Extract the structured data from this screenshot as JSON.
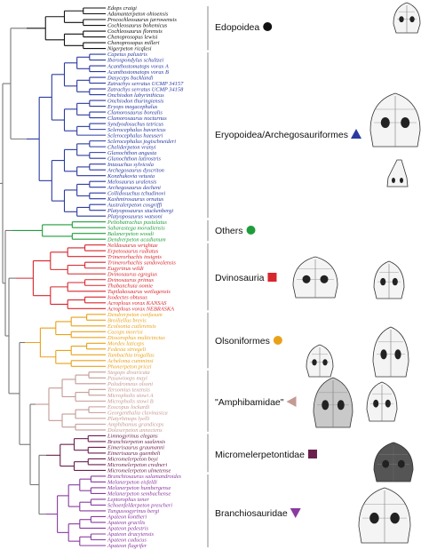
{
  "colors": {
    "edopoidea": "#111111",
    "eryopoidea": "#2b3aa0",
    "others": "#1f9d3a",
    "dvinosauria": "#d7262c",
    "olsoniformes": "#e8a21a",
    "amphibamidae": "#c49a94",
    "micromelerpetontidae": "#6b1f4f",
    "branchiosauridae": "#8a3aa0",
    "root": "#777777"
  },
  "clades": [
    {
      "key": "edopoidea",
      "label": "Edopoidea",
      "symbol": "circle",
      "taxa": [
        "Edops craigi",
        "Adamanterpeton ohioensis",
        "Procochleosaurus jarrowensis",
        "Cochleosaurus bohemicus",
        "Cochleosaurus florensis",
        "Chenoprosopus lewisi",
        "Chenoprosopus milleri",
        "Nigerpeton ricqlesi"
      ]
    },
    {
      "key": "eryopoidea",
      "label": "Eryopoidea/Archegosauriformes",
      "symbol": "triangle-up",
      "taxa": [
        "Capetus palustris",
        "Iberospondylus schultzei",
        "Acanthostomatops vorax A",
        "Acanthostomatops vorax B",
        "Dasyceps bucklandi",
        "Zatrachys serratus UCMP 34157",
        "Zatrachys serratus UCMP 34158",
        "Onchiodon labyrinthicus",
        "Onchiodon thuringiensis",
        "Eryops megacephalus",
        "Clamorosaurus borealis",
        "Clamorosaurus nocturnus",
        "Syndyodosuchus tetricus",
        "Sclerocephalus bavaricus",
        "Sclerocephalus haeuseri",
        "Sclerocephalus jogischneideri",
        "Cheliderpeton vranyi",
        "Glanochthon angusta",
        "Glanochthon latirostris",
        "Intasuchus sylvicola",
        "Archegosaurus dyscriton",
        "Konzhukovia vetusta",
        "Melosaurus uralensis",
        "Archegosaurus decheni",
        "Collidosuchus tchudinovi",
        "Kashmirosaurus ornatus",
        "Australerpeton cosgriffi",
        "Platyoposaurus stuckenbergi",
        "Platyoposaurus watsoni"
      ]
    },
    {
      "key": "others",
      "label": "Others",
      "symbol": "circle",
      "taxa": [
        "Peltobatrachus pustulatus",
        "Saharastega moradiensis",
        "Balanerpeton woodi",
        "Dendrerpeton acadianum"
      ]
    },
    {
      "key": "dvinosauria",
      "label": "Dvinosauria",
      "symbol": "square",
      "taxa": [
        "Neldasaurus wrightae",
        "Erpetosaurus radiatus",
        "Trimerorhachis insignis",
        "Trimerorhachis sandovalensis",
        "Eugyrinus wildi",
        "Dvinosaurus egregius",
        "Dvinosaurus primus",
        "Thabanchuia oomie",
        "Tupilakosaurus wetlugensis",
        "Isodectes obtusus",
        "Acroplous vorax KANSAS",
        "Acroplous vorax NEBRASKA"
      ]
    },
    {
      "key": "olsoniformes",
      "label": "Olsoniformes",
      "symbol": "circle",
      "taxa": [
        "Dendrerpeton confusum",
        "Broiliellus brevis",
        "Ecolsonia cutlerensis",
        "Cacops morrisi",
        "Dissorophus multicinctus",
        "Mordex laticeps",
        "Fedexia striegeli",
        "Tambachia trogallas",
        "Acheloma cumminsi",
        "Phonerpeton pricei"
      ]
    },
    {
      "key": "amphibamidae",
      "label": "\"Amphibamidae\"",
      "symbol": "triangle-left",
      "taxa": [
        "Stegops divaricata",
        "Pasawioops mayi",
        "Palodromeus olsoni",
        "Tersomius texensis",
        "Micropholis stowi A",
        "Micropholis stowi B",
        "Eoscopus lockardi",
        "Georgenthalia clavinasica",
        "Platyrhinops lyelli",
        "Amphibamus grandiceps",
        "Doleserpeton annectens"
      ]
    },
    {
      "key": "micromelerpetontidae",
      "label": "Micromelerpetontidae",
      "symbol": "square",
      "taxa": [
        "Limnogyrinus elegans",
        "Branchierpeton saalensis",
        "Eimerisaurus graumanni",
        "Eimerisaurus guembeli",
        "Micromelerpeton boyi",
        "Micromelerpeton credneri",
        "Micromelerpeton ulmetense"
      ]
    },
    {
      "key": "branchiosauridae",
      "label": "Branchiosauridae",
      "symbol": "triangle-down",
      "taxa": [
        "Branchiosaurus salamandroides",
        "Melanerpeton eisfeldi",
        "Melanerpeton humbergense",
        "Melanerpeton sembachense",
        "Leptorophus tener",
        "Schoenfelderpeton prescheri",
        "Tungussogyrinus bergi",
        "Apateon kontheri",
        "Apateon gracilis",
        "Apateon pedestris",
        "Apateon dracyiensis",
        "Apateon caducus",
        "Apateon flagrifer"
      ]
    }
  ]
}
